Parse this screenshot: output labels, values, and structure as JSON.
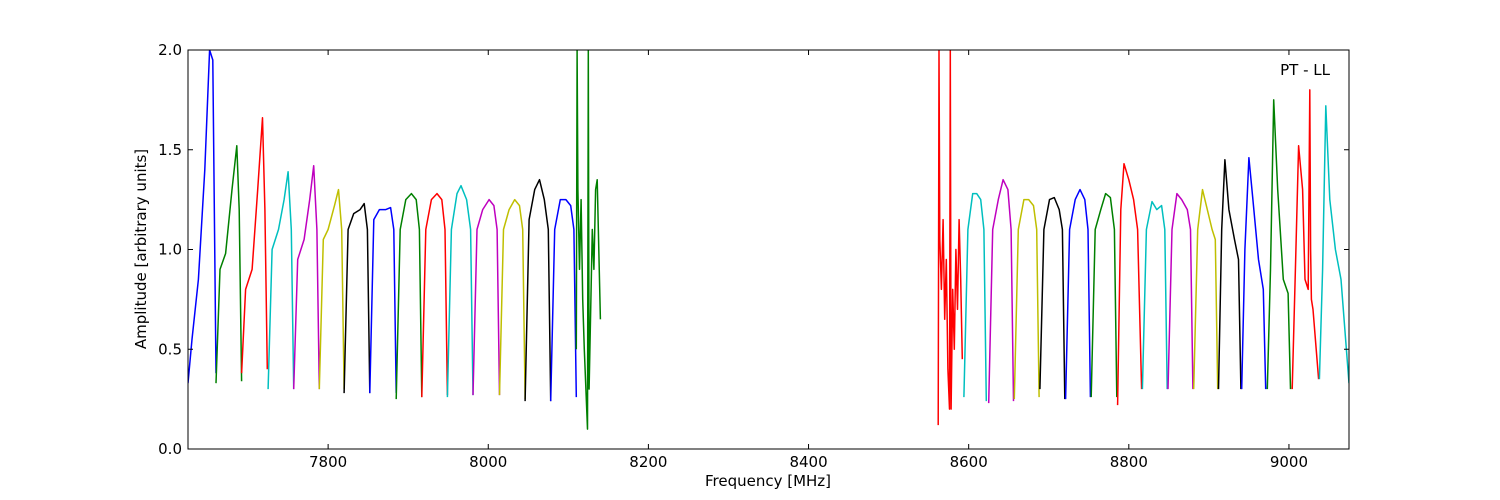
{
  "chart_data": {
    "type": "line",
    "annotation": "PT - LL",
    "xlabel": "Frequency [MHz]",
    "ylabel": "Amplitude [arbitrary units]",
    "xlim": [
      7625,
      9075
    ],
    "ylim": [
      0,
      2.0
    ],
    "x_ticks": [
      7800,
      8000,
      8200,
      8400,
      8600,
      8800,
      9000
    ],
    "x_tick_labels": [
      "7800",
      "8000",
      "8200",
      "8400",
      "8600",
      "8800",
      "9000"
    ],
    "y_ticks": [
      0.0,
      0.5,
      1.0,
      1.5,
      2.0
    ],
    "y_tick_labels": [
      "0.0",
      "0.5",
      "1.0",
      "1.5",
      "2.0"
    ],
    "grid": false,
    "legend": "none",
    "colors": {
      "blue": "#0000ff",
      "green": "#008000",
      "red": "#ff0000",
      "cyan": "#00bfbf",
      "magenta": "#bf00bf",
      "yellow": "#bfbf00",
      "black": "#000000"
    },
    "series": [
      {
        "color": "#0000ff",
        "x": [
          7625,
          7630,
          7638,
          7646,
          7652,
          7656,
          7660
        ],
        "y": [
          0.33,
          0.55,
          0.85,
          1.4,
          2.0,
          1.95,
          0.38
        ]
      },
      {
        "color": "#008000",
        "x": [
          7660,
          7665,
          7672,
          7680,
          7686,
          7689,
          7692
        ],
        "y": [
          0.33,
          0.9,
          0.98,
          1.3,
          1.52,
          1.2,
          0.34
        ]
      },
      {
        "color": "#ff0000",
        "x": [
          7692,
          7697,
          7705,
          7712,
          7718,
          7721,
          7724
        ],
        "y": [
          0.38,
          0.8,
          0.9,
          1.3,
          1.66,
          1.2,
          0.4
        ]
      },
      {
        "color": "#00bfbf",
        "x": [
          7725,
          7730,
          7738,
          7745,
          7750,
          7754,
          7757
        ],
        "y": [
          0.3,
          1.0,
          1.1,
          1.25,
          1.39,
          1.1,
          0.3
        ]
      },
      {
        "color": "#bf00bf",
        "x": [
          7757,
          7762,
          7770,
          7777,
          7782,
          7786,
          7789
        ],
        "y": [
          0.3,
          0.95,
          1.05,
          1.25,
          1.42,
          1.1,
          0.3
        ]
      },
      {
        "color": "#bfbf00",
        "x": [
          7789,
          7794,
          7800,
          7808,
          7813,
          7817,
          7820
        ],
        "y": [
          0.3,
          1.05,
          1.1,
          1.22,
          1.3,
          1.1,
          0.3
        ]
      },
      {
        "color": "#000000",
        "x": [
          7820,
          7825,
          7832,
          7840,
          7845,
          7849,
          7852
        ],
        "y": [
          0.28,
          1.1,
          1.18,
          1.2,
          1.23,
          1.1,
          0.28
        ]
      },
      {
        "color": "#0000ff",
        "x": [
          7852,
          7857,
          7864,
          7872,
          7878,
          7882,
          7885
        ],
        "y": [
          0.28,
          1.15,
          1.2,
          1.2,
          1.21,
          1.1,
          0.28
        ]
      },
      {
        "color": "#008000",
        "x": [
          7885,
          7890,
          7897,
          7904,
          7910,
          7914,
          7917
        ],
        "y": [
          0.25,
          1.1,
          1.25,
          1.28,
          1.25,
          1.1,
          0.26
        ]
      },
      {
        "color": "#ff0000",
        "x": [
          7917,
          7922,
          7929,
          7936,
          7942,
          7946,
          7949
        ],
        "y": [
          0.26,
          1.1,
          1.25,
          1.28,
          1.25,
          1.1,
          0.27
        ]
      },
      {
        "color": "#00bfbf",
        "x": [
          7949,
          7954,
          7961,
          7966,
          7973,
          7978,
          7981
        ],
        "y": [
          0.26,
          1.1,
          1.28,
          1.32,
          1.25,
          1.1,
          0.27
        ]
      },
      {
        "color": "#bf00bf",
        "x": [
          7981,
          7986,
          7993,
          8001,
          8007,
          8011,
          8014
        ],
        "y": [
          0.27,
          1.1,
          1.2,
          1.25,
          1.22,
          1.1,
          0.27
        ]
      },
      {
        "color": "#bfbf00",
        "x": [
          8014,
          8019,
          8026,
          8033,
          8039,
          8043,
          8046
        ],
        "y": [
          0.27,
          1.1,
          1.2,
          1.25,
          1.22,
          1.1,
          0.25
        ]
      },
      {
        "color": "#000000",
        "x": [
          8046,
          8051,
          8058,
          8064,
          8070,
          8075,
          8078
        ],
        "y": [
          0.24,
          1.15,
          1.3,
          1.35,
          1.25,
          1.1,
          0.24
        ]
      },
      {
        "color": "#0000ff",
        "x": [
          8078,
          8083,
          8090,
          8097,
          8103,
          8107,
          8110
        ],
        "y": [
          0.24,
          1.1,
          1.25,
          1.25,
          1.22,
          1.1,
          0.26
        ]
      },
      {
        "color": "#008000",
        "x": [
          8110,
          8111,
          8112,
          8114,
          8116,
          8118,
          8120,
          8122,
          8124,
          8125,
          8126,
          8128,
          8130,
          8132,
          8134,
          8136,
          8138,
          8140
        ],
        "y": [
          0.5,
          2.0,
          1.3,
          0.9,
          1.25,
          0.75,
          0.5,
          0.3,
          0.1,
          2.0,
          0.3,
          0.7,
          1.1,
          0.9,
          1.3,
          1.35,
          1.0,
          0.65
        ]
      },
      {
        "color": "#ff0000",
        "x": [
          8562,
          8563,
          8564,
          8566,
          8568,
          8570,
          8572,
          8574,
          8576,
          8577,
          8578,
          8580,
          8582,
          8584,
          8586,
          8588,
          8590,
          8592
        ],
        "y": [
          0.12,
          2.0,
          1.05,
          0.8,
          1.15,
          0.65,
          0.95,
          0.4,
          0.2,
          2.0,
          0.2,
          0.8,
          0.5,
          1.0,
          0.7,
          1.15,
          0.85,
          0.45
        ]
      },
      {
        "color": "#00bfbf",
        "x": [
          8594,
          8599,
          8605,
          8610,
          8615,
          8619,
          8622
        ],
        "y": [
          0.26,
          1.1,
          1.28,
          1.28,
          1.25,
          1.1,
          0.24
        ]
      },
      {
        "color": "#bf00bf",
        "x": [
          8625,
          8630,
          8637,
          8643,
          8649,
          8653,
          8656
        ],
        "y": [
          0.23,
          1.1,
          1.25,
          1.35,
          1.3,
          1.1,
          0.24
        ]
      },
      {
        "color": "#bfbf00",
        "x": [
          8657,
          8662,
          8669,
          8675,
          8681,
          8685,
          8688
        ],
        "y": [
          0.25,
          1.1,
          1.25,
          1.25,
          1.22,
          1.1,
          0.26
        ]
      },
      {
        "color": "#000000",
        "x": [
          8689,
          8694,
          8701,
          8707,
          8713,
          8717,
          8720
        ],
        "y": [
          0.3,
          1.1,
          1.25,
          1.26,
          1.2,
          1.1,
          0.25
        ]
      },
      {
        "color": "#0000ff",
        "x": [
          8721,
          8726,
          8733,
          8739,
          8745,
          8749,
          8752
        ],
        "y": [
          0.25,
          1.1,
          1.25,
          1.3,
          1.25,
          1.1,
          0.26
        ]
      },
      {
        "color": "#008000",
        "x": [
          8753,
          8758,
          8765,
          8771,
          8777,
          8782,
          8785
        ],
        "y": [
          0.26,
          1.1,
          1.2,
          1.28,
          1.26,
          1.1,
          0.26
        ]
      },
      {
        "color": "#ff0000",
        "x": [
          8786,
          8790,
          8794,
          8800,
          8806,
          8811,
          8816
        ],
        "y": [
          0.22,
          1.2,
          1.43,
          1.35,
          1.25,
          1.1,
          0.3
        ]
      },
      {
        "color": "#00bfbf",
        "x": [
          8817,
          8822,
          8829,
          8835,
          8841,
          8845,
          8848
        ],
        "y": [
          0.3,
          1.1,
          1.24,
          1.2,
          1.22,
          1.1,
          0.3
        ]
      },
      {
        "color": "#bf00bf",
        "x": [
          8849,
          8854,
          8860,
          8866,
          8873,
          8877,
          8880
        ],
        "y": [
          0.3,
          1.1,
          1.28,
          1.25,
          1.2,
          1.1,
          0.3
        ]
      },
      {
        "color": "#bfbf00",
        "x": [
          8881,
          8886,
          8892,
          8898,
          8904,
          8908,
          8911
        ],
        "y": [
          0.3,
          1.1,
          1.3,
          1.2,
          1.1,
          1.05,
          0.3
        ]
      },
      {
        "color": "#000000",
        "x": [
          8912,
          8916,
          8920,
          8925,
          8932,
          8937,
          8940
        ],
        "y": [
          0.3,
          1.1,
          1.45,
          1.2,
          1.05,
          0.95,
          0.3
        ]
      },
      {
        "color": "#0000ff",
        "x": [
          8941,
          8945,
          8950,
          8955,
          8962,
          8968,
          8971
        ],
        "y": [
          0.3,
          1.0,
          1.46,
          1.25,
          0.95,
          0.8,
          0.3
        ]
      },
      {
        "color": "#008000",
        "x": [
          8973,
          8977,
          8981,
          8986,
          8993,
          8999,
          9002
        ],
        "y": [
          0.3,
          0.9,
          1.75,
          1.3,
          0.85,
          0.78,
          0.3
        ]
      },
      {
        "color": "#ff0000",
        "x": [
          9004,
          9008,
          9012,
          9017,
          9020,
          9024,
          9026,
          9027,
          9028,
          9030,
          9034,
          9037
        ],
        "y": [
          0.3,
          0.9,
          1.52,
          1.3,
          0.85,
          0.8,
          1.8,
          1.0,
          0.75,
          0.7,
          0.5,
          0.35
        ]
      },
      {
        "color": "#00bfbf",
        "x": [
          9038,
          9042,
          9046,
          9051,
          9058,
          9065,
          9075
        ],
        "y": [
          0.35,
          0.9,
          1.72,
          1.25,
          1.0,
          0.85,
          0.33
        ]
      }
    ]
  }
}
